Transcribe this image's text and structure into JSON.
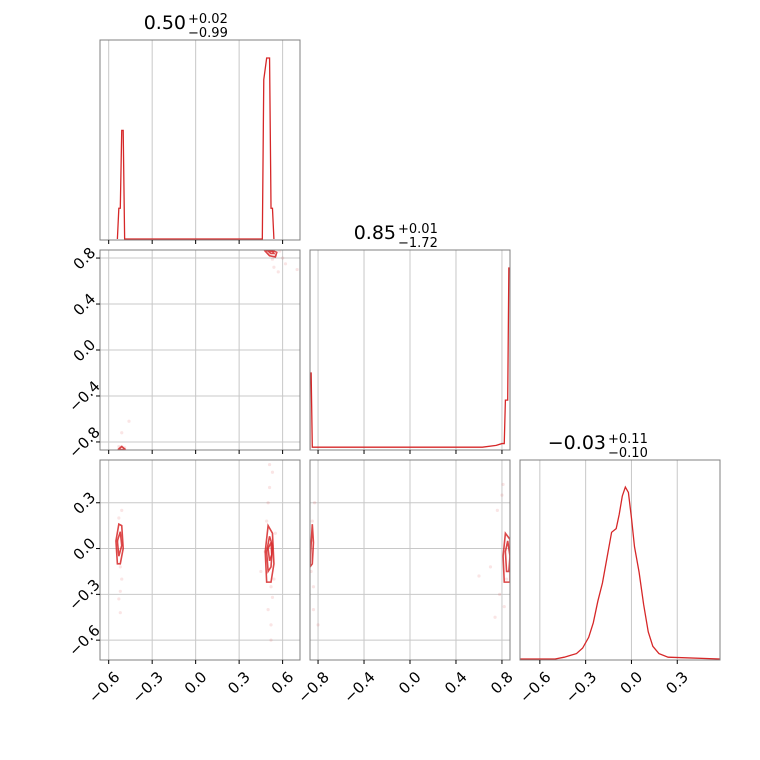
{
  "chart_data": {
    "type": "corner",
    "color": "#d62728",
    "parameters": [
      {
        "title_value": "0.50",
        "title_plus": "+0.02",
        "title_minus": "−0.99",
        "range": [
          -0.66,
          0.72
        ],
        "ticks": [
          -0.6,
          -0.3,
          0.0,
          0.3,
          0.6
        ],
        "tick_labels": [
          "−0.6",
          "−0.3",
          "0.0",
          "0.3",
          "0.6"
        ],
        "hist": [
          [
            -0.54,
            0
          ],
          [
            -0.53,
            0.17
          ],
          [
            -0.52,
            0.17
          ],
          [
            -0.51,
            0.6
          ],
          [
            -0.5,
            0.6
          ],
          [
            -0.49,
            0
          ],
          [
            0.46,
            0
          ],
          [
            0.47,
            0.88
          ],
          [
            0.49,
            1.0
          ],
          [
            0.51,
            1.0
          ],
          [
            0.52,
            0.17
          ],
          [
            0.53,
            0.17
          ],
          [
            0.54,
            0
          ]
        ]
      },
      {
        "title_value": "0.85",
        "title_plus": "+0.01",
        "title_minus": "−1.72",
        "range": [
          -0.87,
          0.87
        ],
        "ticks": [
          -0.8,
          -0.4,
          0.0,
          0.4,
          0.8
        ],
        "tick_labels": [
          "−0.8",
          "−0.4",
          "0.0",
          "0.4",
          "0.8"
        ],
        "hist": [
          [
            -0.87,
            0.42
          ],
          [
            -0.86,
            0.42
          ],
          [
            -0.85,
            0.01
          ],
          [
            0.63,
            0.01
          ],
          [
            0.75,
            0.02
          ],
          [
            0.8,
            0.03
          ],
          [
            0.82,
            0.03
          ],
          [
            0.83,
            0.27
          ],
          [
            0.85,
            0.27
          ],
          [
            0.86,
            1.0
          ],
          [
            0.87,
            1.0
          ]
        ]
      },
      {
        "title_value": "−0.03",
        "title_plus": "+0.11",
        "title_minus": "−0.10",
        "range": [
          -0.73,
          0.58
        ],
        "ticks": [
          -0.6,
          -0.3,
          0.0,
          0.3
        ],
        "tick_labels": [
          "−0.6",
          "−0.3",
          "0.0",
          "0.3"
        ],
        "hist": [
          [
            -0.73,
            0.0
          ],
          [
            -0.5,
            0.0
          ],
          [
            -0.44,
            0.01
          ],
          [
            -0.4,
            0.02
          ],
          [
            -0.36,
            0.03
          ],
          [
            -0.32,
            0.06
          ],
          [
            -0.28,
            0.12
          ],
          [
            -0.25,
            0.2
          ],
          [
            -0.22,
            0.32
          ],
          [
            -0.19,
            0.42
          ],
          [
            -0.16,
            0.56
          ],
          [
            -0.13,
            0.7
          ],
          [
            -0.1,
            0.72
          ],
          [
            -0.08,
            0.8
          ],
          [
            -0.06,
            0.9
          ],
          [
            -0.04,
            0.95
          ],
          [
            -0.02,
            0.92
          ],
          [
            0.0,
            0.78
          ],
          [
            0.02,
            0.62
          ],
          [
            0.05,
            0.48
          ],
          [
            0.08,
            0.3
          ],
          [
            0.11,
            0.15
          ],
          [
            0.14,
            0.07
          ],
          [
            0.18,
            0.03
          ],
          [
            0.24,
            0.01
          ],
          [
            0.58,
            0.0
          ]
        ]
      }
    ],
    "pairs": [
      {
        "x_param": 0,
        "y_param": 1,
        "points": [
          [
            -0.53,
            -0.84
          ],
          [
            -0.52,
            -0.85
          ],
          [
            -0.51,
            -0.84
          ],
          [
            -0.5,
            -0.86
          ],
          [
            -0.52,
            -0.87
          ],
          [
            -0.49,
            -0.85
          ],
          [
            -0.46,
            -0.62
          ],
          [
            -0.51,
            -0.72
          ],
          [
            0.5,
            0.84
          ],
          [
            0.52,
            0.86
          ],
          [
            0.51,
            0.83
          ],
          [
            0.53,
            0.79
          ],
          [
            0.54,
            0.72
          ],
          [
            0.49,
            0.87
          ],
          [
            0.55,
            0.82
          ],
          [
            0.57,
            0.68
          ],
          [
            0.62,
            0.75
          ],
          [
            0.7,
            0.7
          ],
          [
            0.58,
            0.86
          ],
          [
            0.6,
            0.8
          ]
        ],
        "contours": [
          [
            [
              -0.53,
              -0.86
            ],
            [
              -0.51,
              -0.84
            ],
            [
              -0.49,
              -0.86
            ],
            [
              -0.51,
              -0.87
            ]
          ],
          [
            [
              0.48,
              0.86
            ],
            [
              0.51,
              0.82
            ],
            [
              0.55,
              0.81
            ],
            [
              0.56,
              0.85
            ],
            [
              0.52,
              0.87
            ]
          ],
          [
            [
              0.5,
              0.86
            ],
            [
              0.52,
              0.84
            ],
            [
              0.54,
              0.84
            ],
            [
              0.53,
              0.86
            ]
          ]
        ]
      },
      {
        "x_param": 0,
        "y_param": 2,
        "points": [
          [
            -0.53,
            0.2
          ],
          [
            -0.52,
            -0.12
          ],
          [
            -0.54,
            0.05
          ],
          [
            -0.51,
            -0.2
          ],
          [
            -0.52,
            -0.28
          ],
          [
            -0.53,
            -0.33
          ],
          [
            -0.52,
            -0.42
          ],
          [
            -0.51,
            0.25
          ],
          [
            0.48,
            -0.02
          ],
          [
            0.5,
            0.3
          ],
          [
            0.51,
            0.4
          ],
          [
            0.52,
            -0.25
          ],
          [
            0.53,
            -0.32
          ],
          [
            0.5,
            -0.4
          ],
          [
            0.52,
            -0.5
          ],
          [
            0.49,
            0.18
          ],
          [
            0.54,
            -0.2
          ],
          [
            0.55,
            0.1
          ],
          [
            0.53,
            0.5
          ],
          [
            0.45,
            -0.15
          ],
          [
            0.52,
            -0.6
          ],
          [
            0.51,
            0.55
          ]
        ],
        "contours": [
          [
            [
              -0.54,
              -0.1
            ],
            [
              -0.55,
              0.05
            ],
            [
              -0.53,
              0.16
            ],
            [
              -0.51,
              0.15
            ],
            [
              -0.5,
              0.0
            ],
            [
              -0.52,
              -0.1
            ]
          ],
          [
            [
              -0.53,
              -0.05
            ],
            [
              -0.54,
              0.05
            ],
            [
              -0.52,
              0.11
            ],
            [
              -0.51,
              0.02
            ]
          ],
          [
            [
              0.49,
              -0.22
            ],
            [
              0.48,
              -0.02
            ],
            [
              0.5,
              0.15
            ],
            [
              0.53,
              0.1
            ],
            [
              0.54,
              -0.1
            ],
            [
              0.52,
              -0.22
            ]
          ],
          [
            [
              0.5,
              -0.15
            ],
            [
              0.49,
              -0.02
            ],
            [
              0.51,
              0.08
            ],
            [
              0.53,
              0.02
            ],
            [
              0.52,
              -0.12
            ]
          ],
          [
            [
              0.51,
              -0.08
            ],
            [
              0.5,
              0.0
            ],
            [
              0.52,
              0.04
            ],
            [
              0.525,
              -0.04
            ]
          ]
        ]
      },
      {
        "x_param": 1,
        "y_param": 2,
        "points": [
          [
            -0.85,
            0.18
          ],
          [
            -0.86,
            -0.15
          ],
          [
            -0.84,
            -0.25
          ],
          [
            -0.86,
            0.05
          ],
          [
            -0.84,
            -0.4
          ],
          [
            -0.83,
            0.3
          ],
          [
            -0.8,
            -0.5
          ],
          [
            0.76,
            0.25
          ],
          [
            0.8,
            0.35
          ],
          [
            0.7,
            -0.12
          ],
          [
            0.78,
            -0.3
          ],
          [
            0.82,
            -0.38
          ],
          [
            0.84,
            -0.2
          ],
          [
            0.6,
            -0.18
          ],
          [
            0.74,
            -0.45
          ],
          [
            0.81,
            0.42
          ]
        ],
        "contours": [
          [
            [
              -0.87,
              -0.12
            ],
            [
              -0.86,
              0.03
            ],
            [
              -0.85,
              0.16
            ],
            [
              -0.84,
              0.04
            ],
            [
              -0.85,
              -0.1
            ]
          ],
          [
            [
              0.82,
              -0.22
            ],
            [
              0.81,
              -0.05
            ],
            [
              0.83,
              0.1
            ],
            [
              0.87,
              0.06
            ],
            [
              0.87,
              -0.22
            ]
          ],
          [
            [
              0.84,
              -0.15
            ],
            [
              0.83,
              -0.02
            ],
            [
              0.85,
              0.05
            ],
            [
              0.87,
              -0.05
            ],
            [
              0.86,
              -0.15
            ]
          ]
        ]
      }
    ]
  }
}
